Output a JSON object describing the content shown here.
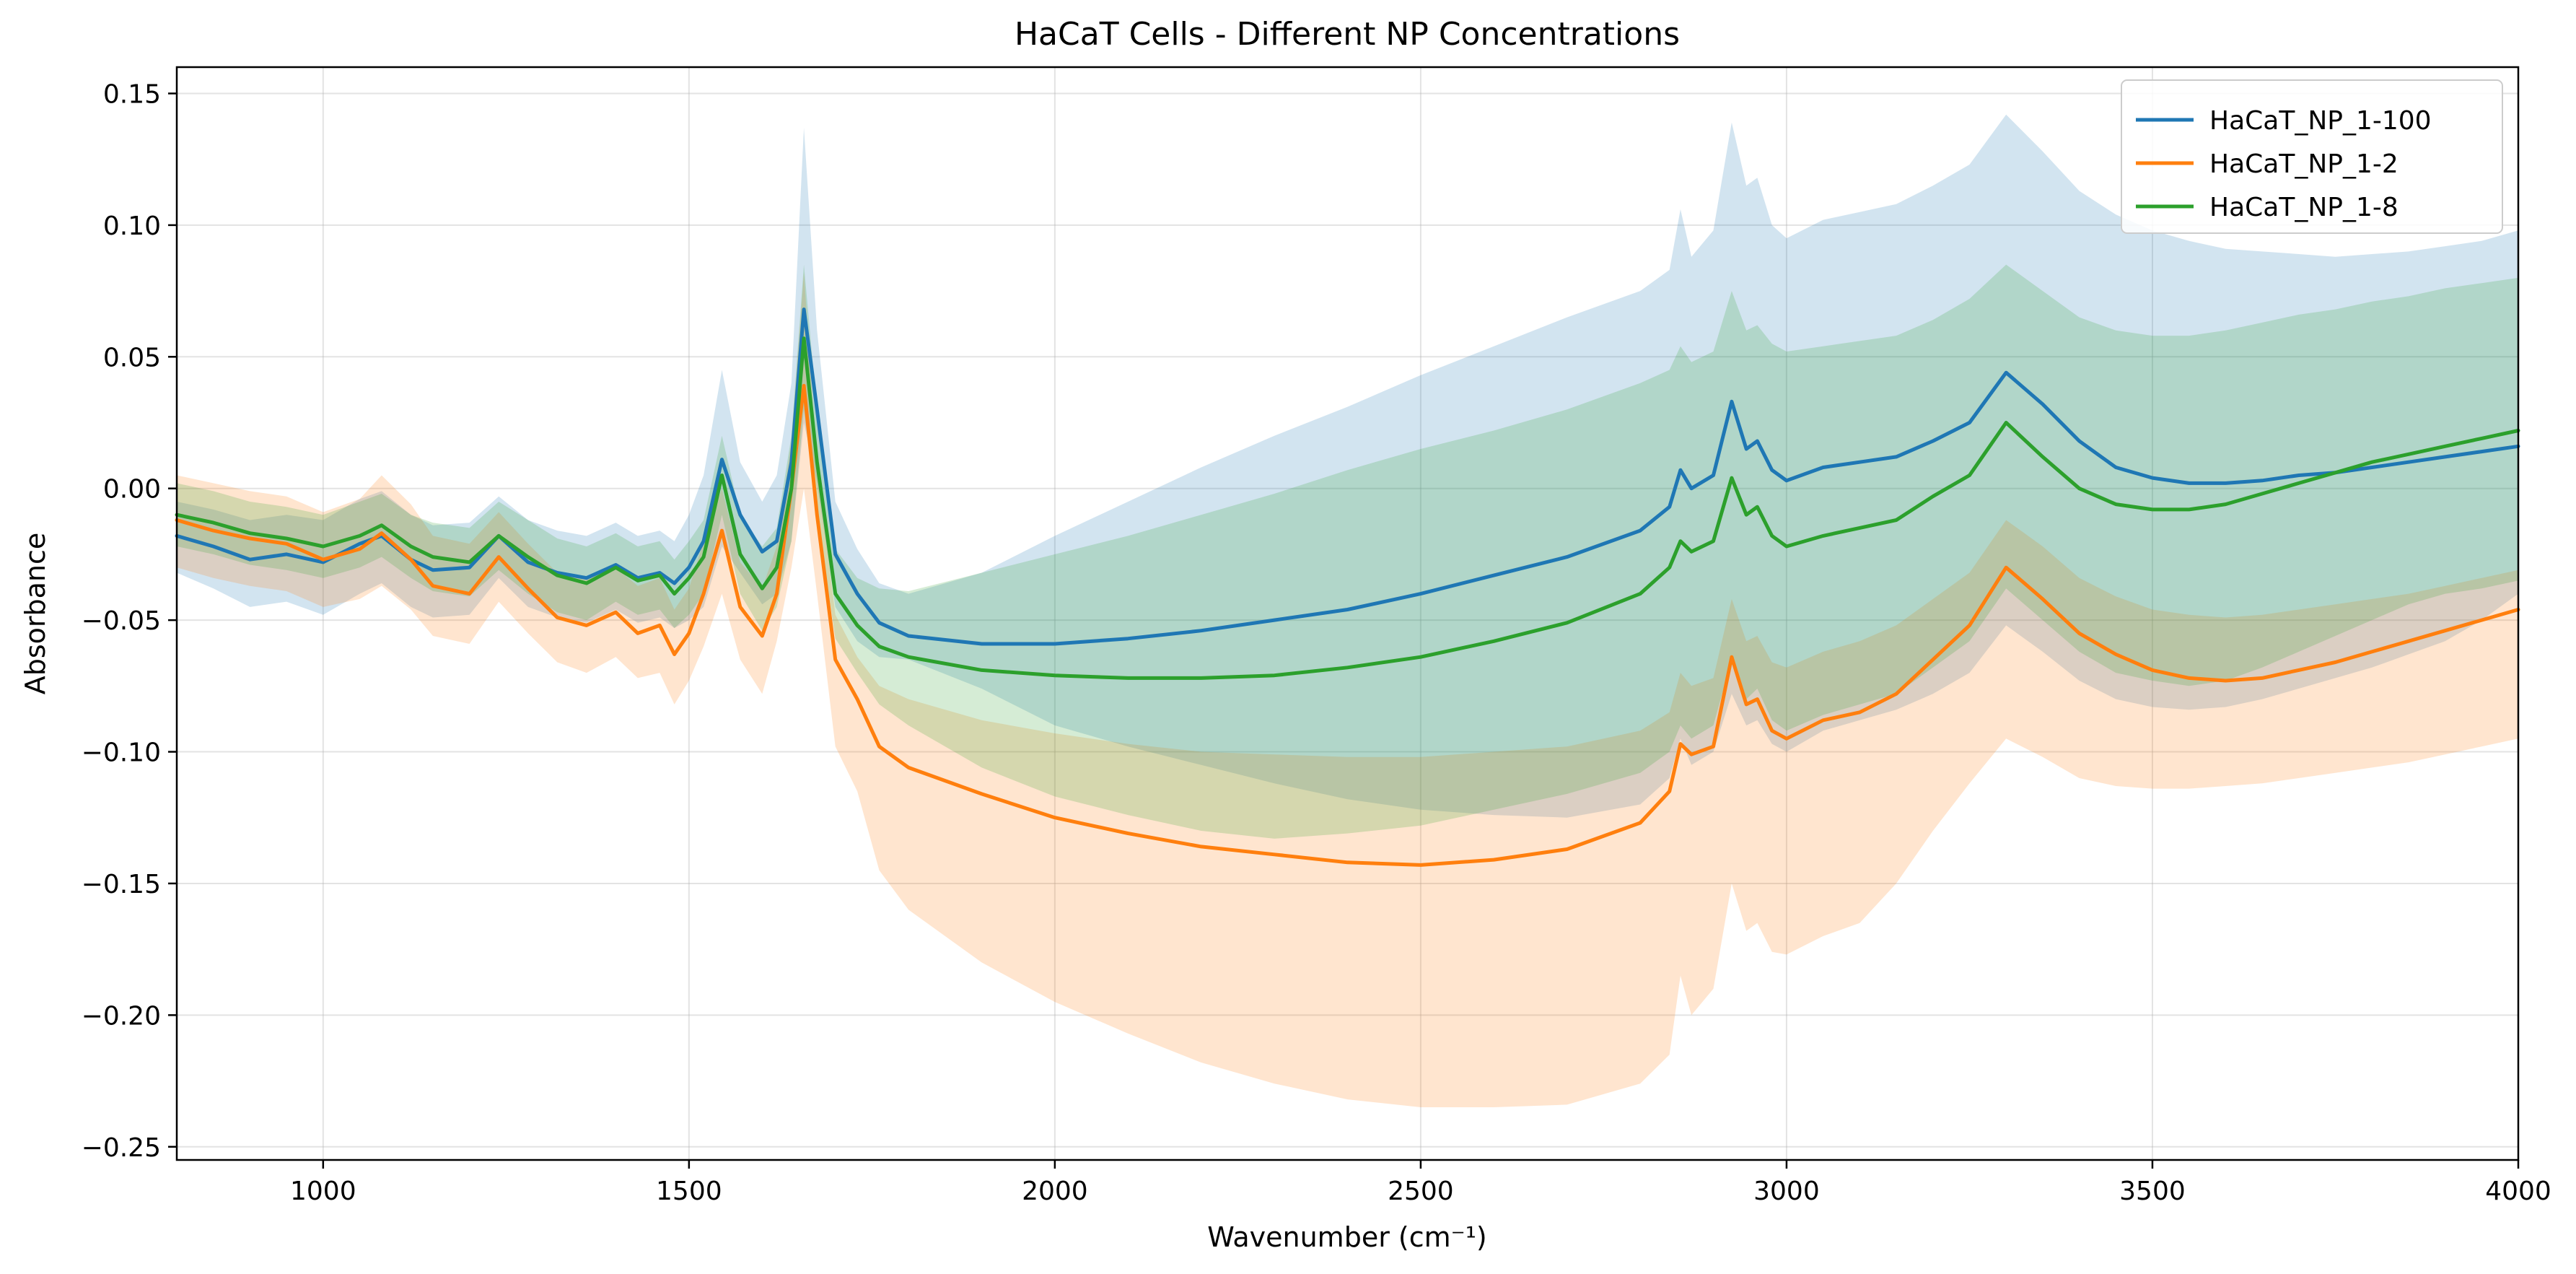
{
  "chart_data": {
    "type": "line",
    "title": "HaCaT Cells - Different NP Concentrations",
    "xlabel": "Wavenumber (cm⁻¹)",
    "ylabel": "Absorbance",
    "xlim": [
      800,
      4000
    ],
    "ylim": [
      -0.255,
      0.16
    ],
    "xticks": [
      1000,
      1500,
      2000,
      2500,
      3000,
      3500,
      4000
    ],
    "xtick_labels": [
      "1000",
      "1500",
      "2000",
      "2500",
      "3000",
      "3500",
      "4000"
    ],
    "yticks": [
      0.15,
      0.1,
      0.05,
      0.0,
      -0.05,
      -0.1,
      -0.15,
      -0.2,
      -0.25
    ],
    "ytick_labels": [
      "0.15",
      "0.10",
      "0.05",
      "0.00",
      "−0.05",
      "−0.10",
      "−0.15",
      "−0.20",
      "−0.25"
    ],
    "grid": true,
    "legend_position": "top-right",
    "x": [
      800,
      850,
      900,
      950,
      1000,
      1050,
      1080,
      1120,
      1150,
      1200,
      1240,
      1280,
      1320,
      1360,
      1400,
      1430,
      1460,
      1480,
      1500,
      1520,
      1545,
      1570,
      1600,
      1620,
      1640,
      1657,
      1675,
      1700,
      1730,
      1760,
      1800,
      1900,
      2000,
      2100,
      2200,
      2300,
      2400,
      2500,
      2600,
      2700,
      2800,
      2840,
      2855,
      2870,
      2900,
      2925,
      2945,
      2960,
      2980,
      3000,
      3050,
      3100,
      3150,
      3200,
      3250,
      3300,
      3350,
      3400,
      3450,
      3500,
      3550,
      3600,
      3650,
      3700,
      3750,
      3800,
      3850,
      3900,
      3950,
      4000
    ],
    "series": [
      {
        "name": "HaCaT_NP_1-100",
        "color": "#1f77b4",
        "band_color": "#1f77b4",
        "mean": [
          -0.018,
          -0.022,
          -0.027,
          -0.025,
          -0.028,
          -0.021,
          -0.018,
          -0.027,
          -0.031,
          -0.03,
          -0.018,
          -0.028,
          -0.032,
          -0.034,
          -0.029,
          -0.034,
          -0.032,
          -0.036,
          -0.03,
          -0.02,
          0.011,
          -0.01,
          -0.024,
          -0.02,
          0.01,
          0.068,
          0.03,
          -0.025,
          -0.04,
          -0.051,
          -0.056,
          -0.059,
          -0.059,
          -0.057,
          -0.054,
          -0.05,
          -0.046,
          -0.04,
          -0.033,
          -0.026,
          -0.016,
          -0.007,
          0.007,
          0.0,
          0.005,
          0.033,
          0.015,
          0.018,
          0.007,
          0.003,
          0.008,
          0.01,
          0.012,
          0.018,
          0.025,
          0.044,
          0.032,
          0.018,
          0.008,
          0.004,
          0.002,
          0.002,
          0.003,
          0.005,
          0.006,
          0.008,
          0.01,
          0.012,
          0.014,
          0.016
        ],
        "upper": [
          -0.005,
          -0.008,
          -0.012,
          -0.01,
          -0.012,
          -0.004,
          -0.001,
          -0.01,
          -0.014,
          -0.013,
          -0.003,
          -0.012,
          -0.016,
          -0.018,
          -0.013,
          -0.018,
          -0.016,
          -0.02,
          -0.01,
          0.005,
          0.045,
          0.01,
          -0.005,
          0.005,
          0.04,
          0.137,
          0.06,
          -0.005,
          -0.023,
          -0.036,
          -0.04,
          -0.032,
          -0.018,
          -0.005,
          0.008,
          0.02,
          0.031,
          0.043,
          0.054,
          0.065,
          0.075,
          0.083,
          0.106,
          0.088,
          0.098,
          0.139,
          0.115,
          0.118,
          0.1,
          0.095,
          0.102,
          0.105,
          0.108,
          0.115,
          0.123,
          0.142,
          0.128,
          0.113,
          0.104,
          0.098,
          0.094,
          0.091,
          0.09,
          0.089,
          0.088,
          0.089,
          0.09,
          0.092,
          0.094,
          0.098
        ],
        "lower": [
          -0.032,
          -0.038,
          -0.045,
          -0.043,
          -0.048,
          -0.04,
          -0.036,
          -0.045,
          -0.049,
          -0.048,
          -0.034,
          -0.045,
          -0.049,
          -0.051,
          -0.046,
          -0.051,
          -0.049,
          -0.053,
          -0.05,
          -0.045,
          -0.022,
          -0.032,
          -0.044,
          -0.04,
          -0.02,
          0.025,
          0.002,
          -0.045,
          -0.058,
          -0.064,
          -0.065,
          -0.076,
          -0.09,
          -0.098,
          -0.105,
          -0.112,
          -0.118,
          -0.122,
          -0.124,
          -0.125,
          -0.12,
          -0.11,
          -0.095,
          -0.105,
          -0.1,
          -0.078,
          -0.09,
          -0.088,
          -0.097,
          -0.1,
          -0.092,
          -0.088,
          -0.084,
          -0.078,
          -0.07,
          -0.052,
          -0.062,
          -0.073,
          -0.08,
          -0.083,
          -0.084,
          -0.083,
          -0.08,
          -0.076,
          -0.072,
          -0.068,
          -0.063,
          -0.058,
          -0.05,
          -0.04
        ]
      },
      {
        "name": "HaCaT_NP_1-2",
        "color": "#ff7f0e",
        "band_color": "#ff7f0e",
        "mean": [
          -0.012,
          -0.016,
          -0.019,
          -0.021,
          -0.027,
          -0.023,
          -0.017,
          -0.027,
          -0.037,
          -0.04,
          -0.026,
          -0.038,
          -0.049,
          -0.052,
          -0.047,
          -0.055,
          -0.052,
          -0.063,
          -0.055,
          -0.04,
          -0.016,
          -0.045,
          -0.056,
          -0.04,
          0.0,
          0.039,
          -0.01,
          -0.065,
          -0.08,
          -0.098,
          -0.106,
          -0.116,
          -0.125,
          -0.131,
          -0.136,
          -0.139,
          -0.142,
          -0.143,
          -0.141,
          -0.137,
          -0.127,
          -0.115,
          -0.097,
          -0.101,
          -0.098,
          -0.064,
          -0.082,
          -0.08,
          -0.092,
          -0.095,
          -0.088,
          -0.085,
          -0.078,
          -0.065,
          -0.052,
          -0.03,
          -0.042,
          -0.055,
          -0.063,
          -0.069,
          -0.072,
          -0.073,
          -0.072,
          -0.069,
          -0.066,
          -0.062,
          -0.058,
          -0.054,
          -0.05,
          -0.046
        ],
        "upper": [
          0.005,
          0.002,
          -0.001,
          -0.003,
          -0.009,
          -0.004,
          0.005,
          -0.006,
          -0.018,
          -0.021,
          -0.009,
          -0.021,
          -0.032,
          -0.034,
          -0.03,
          -0.037,
          -0.034,
          -0.046,
          -0.038,
          -0.02,
          0.0,
          -0.028,
          -0.038,
          -0.022,
          0.018,
          0.082,
          0.008,
          -0.048,
          -0.064,
          -0.075,
          -0.08,
          -0.088,
          -0.093,
          -0.097,
          -0.1,
          -0.101,
          -0.102,
          -0.102,
          -0.1,
          -0.098,
          -0.092,
          -0.085,
          -0.07,
          -0.075,
          -0.072,
          -0.042,
          -0.058,
          -0.056,
          -0.066,
          -0.068,
          -0.062,
          -0.058,
          -0.052,
          -0.042,
          -0.032,
          -0.012,
          -0.022,
          -0.034,
          -0.041,
          -0.046,
          -0.048,
          -0.049,
          -0.048,
          -0.046,
          -0.044,
          -0.042,
          -0.04,
          -0.037,
          -0.034,
          -0.031
        ],
        "lower": [
          -0.03,
          -0.034,
          -0.037,
          -0.039,
          -0.045,
          -0.042,
          -0.037,
          -0.046,
          -0.056,
          -0.059,
          -0.043,
          -0.055,
          -0.066,
          -0.07,
          -0.064,
          -0.072,
          -0.07,
          -0.082,
          -0.073,
          -0.06,
          -0.04,
          -0.065,
          -0.078,
          -0.058,
          -0.03,
          0.0,
          -0.04,
          -0.098,
          -0.115,
          -0.145,
          -0.16,
          -0.18,
          -0.195,
          -0.207,
          -0.218,
          -0.226,
          -0.232,
          -0.235,
          -0.235,
          -0.234,
          -0.226,
          -0.215,
          -0.185,
          -0.2,
          -0.19,
          -0.15,
          -0.168,
          -0.165,
          -0.176,
          -0.177,
          -0.17,
          -0.165,
          -0.15,
          -0.13,
          -0.112,
          -0.095,
          -0.102,
          -0.11,
          -0.113,
          -0.114,
          -0.114,
          -0.113,
          -0.112,
          -0.11,
          -0.108,
          -0.106,
          -0.104,
          -0.101,
          -0.098,
          -0.095
        ]
      },
      {
        "name": "HaCaT_NP_1-8",
        "color": "#2ca02c",
        "band_color": "#2ca02c",
        "mean": [
          -0.01,
          -0.013,
          -0.017,
          -0.019,
          -0.022,
          -0.018,
          -0.014,
          -0.022,
          -0.026,
          -0.028,
          -0.018,
          -0.026,
          -0.033,
          -0.036,
          -0.03,
          -0.035,
          -0.033,
          -0.04,
          -0.034,
          -0.026,
          0.005,
          -0.025,
          -0.038,
          -0.03,
          0.0,
          0.057,
          0.01,
          -0.04,
          -0.052,
          -0.06,
          -0.064,
          -0.069,
          -0.071,
          -0.072,
          -0.072,
          -0.071,
          -0.068,
          -0.064,
          -0.058,
          -0.051,
          -0.04,
          -0.03,
          -0.02,
          -0.024,
          -0.02,
          0.004,
          -0.01,
          -0.007,
          -0.018,
          -0.022,
          -0.018,
          -0.015,
          -0.012,
          -0.003,
          0.005,
          0.025,
          0.012,
          0.0,
          -0.006,
          -0.008,
          -0.008,
          -0.006,
          -0.002,
          0.002,
          0.006,
          0.01,
          0.013,
          0.016,
          0.019,
          0.022
        ],
        "upper": [
          0.002,
          -0.001,
          -0.005,
          -0.007,
          -0.01,
          -0.005,
          -0.002,
          -0.01,
          -0.013,
          -0.015,
          -0.005,
          -0.012,
          -0.019,
          -0.022,
          -0.017,
          -0.022,
          -0.02,
          -0.027,
          -0.02,
          -0.012,
          0.02,
          -0.01,
          -0.022,
          -0.015,
          0.02,
          0.085,
          0.03,
          -0.023,
          -0.034,
          -0.038,
          -0.039,
          -0.032,
          -0.025,
          -0.018,
          -0.01,
          -0.002,
          0.007,
          0.015,
          0.022,
          0.03,
          0.04,
          0.045,
          0.054,
          0.048,
          0.052,
          0.075,
          0.06,
          0.062,
          0.055,
          0.052,
          0.054,
          0.056,
          0.058,
          0.064,
          0.072,
          0.085,
          0.075,
          0.065,
          0.06,
          0.058,
          0.058,
          0.06,
          0.063,
          0.066,
          0.068,
          0.071,
          0.073,
          0.076,
          0.078,
          0.08
        ],
        "lower": [
          -0.022,
          -0.025,
          -0.029,
          -0.031,
          -0.034,
          -0.03,
          -0.026,
          -0.034,
          -0.039,
          -0.041,
          -0.031,
          -0.04,
          -0.047,
          -0.05,
          -0.043,
          -0.048,
          -0.046,
          -0.053,
          -0.048,
          -0.04,
          -0.01,
          -0.04,
          -0.054,
          -0.045,
          -0.02,
          0.03,
          -0.01,
          -0.057,
          -0.07,
          -0.082,
          -0.09,
          -0.106,
          -0.117,
          -0.124,
          -0.13,
          -0.133,
          -0.131,
          -0.128,
          -0.122,
          -0.116,
          -0.108,
          -0.1,
          -0.09,
          -0.095,
          -0.09,
          -0.065,
          -0.08,
          -0.076,
          -0.088,
          -0.092,
          -0.086,
          -0.082,
          -0.078,
          -0.068,
          -0.058,
          -0.038,
          -0.05,
          -0.062,
          -0.07,
          -0.073,
          -0.075,
          -0.073,
          -0.068,
          -0.062,
          -0.056,
          -0.05,
          -0.044,
          -0.04,
          -0.038,
          -0.035
        ]
      }
    ]
  }
}
